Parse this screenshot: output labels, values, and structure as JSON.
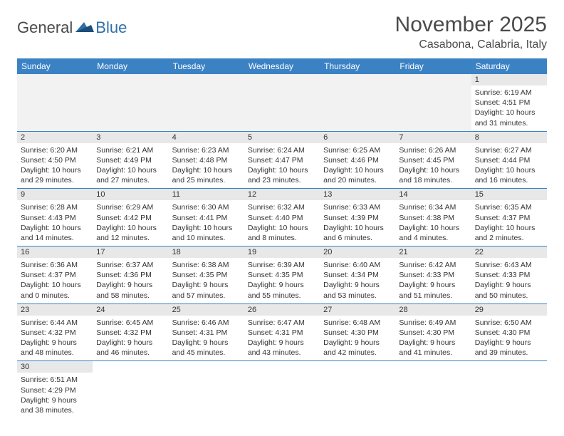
{
  "logo": {
    "general": "General",
    "blue": "Blue"
  },
  "title": "November 2025",
  "location": "Casabona, Calabria, Italy",
  "colors": {
    "header_bg": "#3b82c4",
    "header_text": "#ffffff",
    "daynum_bg": "#e8e8e8",
    "border": "#3b82c4",
    "logo_blue": "#2f6fa8",
    "logo_gray": "#4a4a4a",
    "text": "#333333",
    "page_bg": "#ffffff"
  },
  "weekdays": [
    "Sunday",
    "Monday",
    "Tuesday",
    "Wednesday",
    "Thursday",
    "Friday",
    "Saturday"
  ],
  "weeks": [
    [
      null,
      null,
      null,
      null,
      null,
      null,
      {
        "n": "1",
        "sr": "Sunrise: 6:19 AM",
        "ss": "Sunset: 4:51 PM",
        "dl": "Daylight: 10 hours and 31 minutes."
      }
    ],
    [
      {
        "n": "2",
        "sr": "Sunrise: 6:20 AM",
        "ss": "Sunset: 4:50 PM",
        "dl": "Daylight: 10 hours and 29 minutes."
      },
      {
        "n": "3",
        "sr": "Sunrise: 6:21 AM",
        "ss": "Sunset: 4:49 PM",
        "dl": "Daylight: 10 hours and 27 minutes."
      },
      {
        "n": "4",
        "sr": "Sunrise: 6:23 AM",
        "ss": "Sunset: 4:48 PM",
        "dl": "Daylight: 10 hours and 25 minutes."
      },
      {
        "n": "5",
        "sr": "Sunrise: 6:24 AM",
        "ss": "Sunset: 4:47 PM",
        "dl": "Daylight: 10 hours and 23 minutes."
      },
      {
        "n": "6",
        "sr": "Sunrise: 6:25 AM",
        "ss": "Sunset: 4:46 PM",
        "dl": "Daylight: 10 hours and 20 minutes."
      },
      {
        "n": "7",
        "sr": "Sunrise: 6:26 AM",
        "ss": "Sunset: 4:45 PM",
        "dl": "Daylight: 10 hours and 18 minutes."
      },
      {
        "n": "8",
        "sr": "Sunrise: 6:27 AM",
        "ss": "Sunset: 4:44 PM",
        "dl": "Daylight: 10 hours and 16 minutes."
      }
    ],
    [
      {
        "n": "9",
        "sr": "Sunrise: 6:28 AM",
        "ss": "Sunset: 4:43 PM",
        "dl": "Daylight: 10 hours and 14 minutes."
      },
      {
        "n": "10",
        "sr": "Sunrise: 6:29 AM",
        "ss": "Sunset: 4:42 PM",
        "dl": "Daylight: 10 hours and 12 minutes."
      },
      {
        "n": "11",
        "sr": "Sunrise: 6:30 AM",
        "ss": "Sunset: 4:41 PM",
        "dl": "Daylight: 10 hours and 10 minutes."
      },
      {
        "n": "12",
        "sr": "Sunrise: 6:32 AM",
        "ss": "Sunset: 4:40 PM",
        "dl": "Daylight: 10 hours and 8 minutes."
      },
      {
        "n": "13",
        "sr": "Sunrise: 6:33 AM",
        "ss": "Sunset: 4:39 PM",
        "dl": "Daylight: 10 hours and 6 minutes."
      },
      {
        "n": "14",
        "sr": "Sunrise: 6:34 AM",
        "ss": "Sunset: 4:38 PM",
        "dl": "Daylight: 10 hours and 4 minutes."
      },
      {
        "n": "15",
        "sr": "Sunrise: 6:35 AM",
        "ss": "Sunset: 4:37 PM",
        "dl": "Daylight: 10 hours and 2 minutes."
      }
    ],
    [
      {
        "n": "16",
        "sr": "Sunrise: 6:36 AM",
        "ss": "Sunset: 4:37 PM",
        "dl": "Daylight: 10 hours and 0 minutes."
      },
      {
        "n": "17",
        "sr": "Sunrise: 6:37 AM",
        "ss": "Sunset: 4:36 PM",
        "dl": "Daylight: 9 hours and 58 minutes."
      },
      {
        "n": "18",
        "sr": "Sunrise: 6:38 AM",
        "ss": "Sunset: 4:35 PM",
        "dl": "Daylight: 9 hours and 57 minutes."
      },
      {
        "n": "19",
        "sr": "Sunrise: 6:39 AM",
        "ss": "Sunset: 4:35 PM",
        "dl": "Daylight: 9 hours and 55 minutes."
      },
      {
        "n": "20",
        "sr": "Sunrise: 6:40 AM",
        "ss": "Sunset: 4:34 PM",
        "dl": "Daylight: 9 hours and 53 minutes."
      },
      {
        "n": "21",
        "sr": "Sunrise: 6:42 AM",
        "ss": "Sunset: 4:33 PM",
        "dl": "Daylight: 9 hours and 51 minutes."
      },
      {
        "n": "22",
        "sr": "Sunrise: 6:43 AM",
        "ss": "Sunset: 4:33 PM",
        "dl": "Daylight: 9 hours and 50 minutes."
      }
    ],
    [
      {
        "n": "23",
        "sr": "Sunrise: 6:44 AM",
        "ss": "Sunset: 4:32 PM",
        "dl": "Daylight: 9 hours and 48 minutes."
      },
      {
        "n": "24",
        "sr": "Sunrise: 6:45 AM",
        "ss": "Sunset: 4:32 PM",
        "dl": "Daylight: 9 hours and 46 minutes."
      },
      {
        "n": "25",
        "sr": "Sunrise: 6:46 AM",
        "ss": "Sunset: 4:31 PM",
        "dl": "Daylight: 9 hours and 45 minutes."
      },
      {
        "n": "26",
        "sr": "Sunrise: 6:47 AM",
        "ss": "Sunset: 4:31 PM",
        "dl": "Daylight: 9 hours and 43 minutes."
      },
      {
        "n": "27",
        "sr": "Sunrise: 6:48 AM",
        "ss": "Sunset: 4:30 PM",
        "dl": "Daylight: 9 hours and 42 minutes."
      },
      {
        "n": "28",
        "sr": "Sunrise: 6:49 AM",
        "ss": "Sunset: 4:30 PM",
        "dl": "Daylight: 9 hours and 41 minutes."
      },
      {
        "n": "29",
        "sr": "Sunrise: 6:50 AM",
        "ss": "Sunset: 4:30 PM",
        "dl": "Daylight: 9 hours and 39 minutes."
      }
    ],
    [
      {
        "n": "30",
        "sr": "Sunrise: 6:51 AM",
        "ss": "Sunset: 4:29 PM",
        "dl": "Daylight: 9 hours and 38 minutes."
      },
      null,
      null,
      null,
      null,
      null,
      null
    ]
  ]
}
